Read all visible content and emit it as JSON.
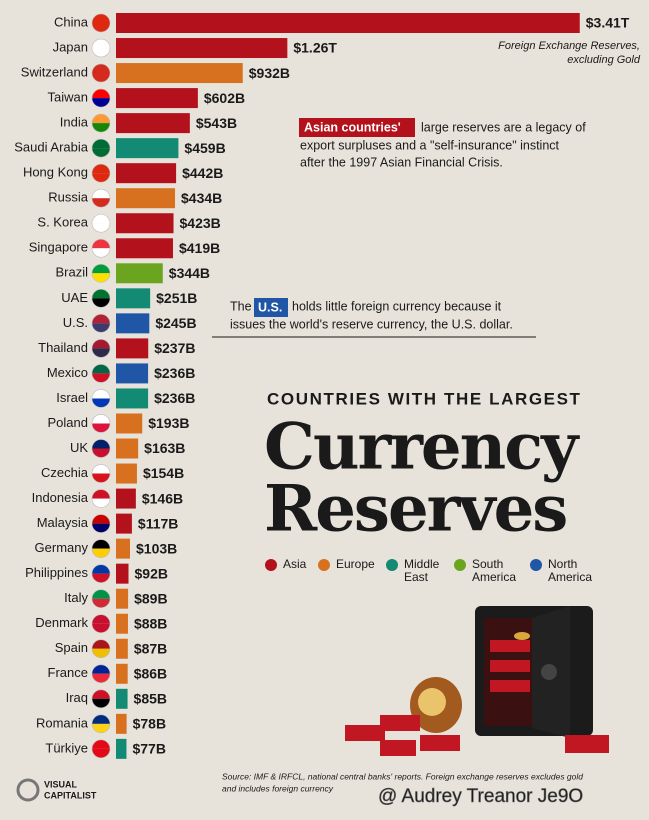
{
  "chart_data": {
    "type": "bar",
    "orientation": "horizontal",
    "title": "COUNTRIES WITH THE LARGEST",
    "title_main": [
      "Currency",
      "Reserves"
    ],
    "note": [
      "Foreign Exchange Reserves,",
      "excluding Gold"
    ],
    "categories": [
      "China",
      "Japan",
      "Switzerland",
      "Taiwan",
      "India",
      "Saudi Arabia",
      "Hong Kong",
      "Russia",
      "S. Korea",
      "Singapore",
      "Brazil",
      "UAE",
      "U.S.",
      "Thailand",
      "Mexico",
      "Israel",
      "Poland",
      "UK",
      "Czechia",
      "Indonesia",
      "Malaysia",
      "Germany",
      "Philippines",
      "Italy",
      "Denmark",
      "Spain",
      "France",
      "Iraq",
      "Romania",
      "Türkiye"
    ],
    "values": [
      3410,
      1260,
      932,
      602,
      543,
      459,
      442,
      434,
      423,
      419,
      344,
      251,
      245,
      237,
      236,
      236,
      193,
      163,
      154,
      146,
      117,
      103,
      92,
      89,
      88,
      87,
      86,
      85,
      78,
      77
    ],
    "value_labels": [
      "$3.41T",
      "$1.26T",
      "$932B",
      "$602B",
      "$543B",
      "$459B",
      "$442B",
      "$434B",
      "$423B",
      "$419B",
      "$344B",
      "$251B",
      "$245B",
      "$237B",
      "$236B",
      "$236B",
      "$193B",
      "$163B",
      "$154B",
      "$146B",
      "$117B",
      "$103B",
      "$92B",
      "$89B",
      "$88B",
      "$87B",
      "$86B",
      "$85B",
      "$78B",
      "$77B"
    ],
    "colors": [
      "#b3121c",
      "#b3121c",
      "#d8711f",
      "#b3121c",
      "#b3121c",
      "#138a74",
      "#b3121c",
      "#d8711f",
      "#b3121c",
      "#b3121c",
      "#6ba520",
      "#138a74",
      "#1f56a6",
      "#b3121c",
      "#1f56a6",
      "#138a74",
      "#d8711f",
      "#d8711f",
      "#d8711f",
      "#b3121c",
      "#b3121c",
      "#d8711f",
      "#b3121c",
      "#d8711f",
      "#d8711f",
      "#d8711f",
      "#d8711f",
      "#138a74",
      "#d8711f",
      "#138a74"
    ],
    "legend": [
      {
        "name": [
          "Asia"
        ],
        "color": "#b3121c"
      },
      {
        "name": [
          "Europe"
        ],
        "color": "#d8711f"
      },
      {
        "name": [
          "Middle",
          "East"
        ],
        "color": "#138a74"
      },
      {
        "name": [
          "South",
          "America"
        ],
        "color": "#6ba520"
      },
      {
        "name": [
          "North",
          "America"
        ],
        "color": "#1f56a6"
      }
    ],
    "annotations": [
      {
        "highlight": "Asian countries'",
        "color": "#b3121c",
        "first": "large reserves are a legacy of",
        "lines": [
          "export surpluses and a \"self-insurance\" instinct",
          "after the 1997 Asian Financial Crisis."
        ]
      },
      {
        "before": "The",
        "highlight": "U.S.",
        "color": "#1f56a6",
        "first": "holds little foreign currency because it",
        "lines": [
          "issues the world's reserve currency, the U.S. dollar."
        ]
      }
    ],
    "source": [
      "Source: IMF & IRFCL, national central banks' reports. Foreign exchange reserves excludes gold",
      "and includes foreign currency"
    ],
    "logo": [
      "VISUAL",
      "CAPITALIST"
    ],
    "watermark": "@ Audrey Treanor Je9O"
  }
}
